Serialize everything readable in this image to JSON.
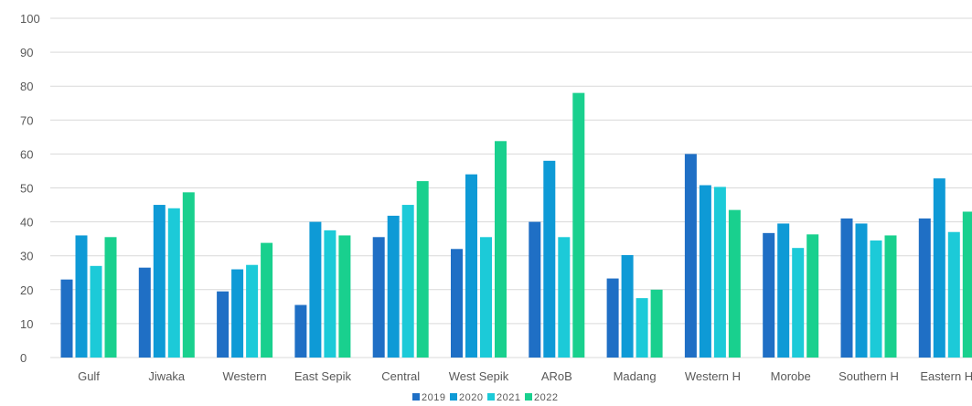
{
  "chart_data": {
    "type": "bar",
    "categories": [
      "Gulf",
      "Jiwaka",
      "Western",
      "East Sepik",
      "Central",
      "West Sepik",
      "ARoB",
      "Madang",
      "Western H",
      "Morobe",
      "Southern H",
      "Eastern H"
    ],
    "series": [
      {
        "name": "2019",
        "color": "#1f6fc5",
        "values": [
          23,
          26.5,
          19.5,
          15.5,
          35.5,
          32,
          40,
          23.3,
          60,
          36.7,
          41,
          41
        ]
      },
      {
        "name": "2020",
        "color": "#0e9ad6",
        "values": [
          36,
          45,
          26,
          40,
          41.8,
          54,
          58,
          30.2,
          50.8,
          39.5,
          39.5,
          52.8
        ]
      },
      {
        "name": "2021",
        "color": "#1ccad8",
        "values": [
          27,
          44,
          27.3,
          37.5,
          45,
          35.5,
          35.5,
          17.5,
          50.3,
          32.3,
          34.5,
          37
        ]
      },
      {
        "name": "2022",
        "color": "#19d08e",
        "values": [
          35.5,
          48.7,
          33.8,
          36,
          52,
          63.8,
          78,
          20,
          43.5,
          36.3,
          36,
          43
        ]
      }
    ],
    "yticks": [
      "0",
      "10",
      "20",
      "30",
      "40",
      "50",
      "60",
      "70",
      "80",
      "90",
      "100"
    ],
    "ylim": [
      0,
      100
    ],
    "grid": true,
    "legend": "bottom-center"
  }
}
